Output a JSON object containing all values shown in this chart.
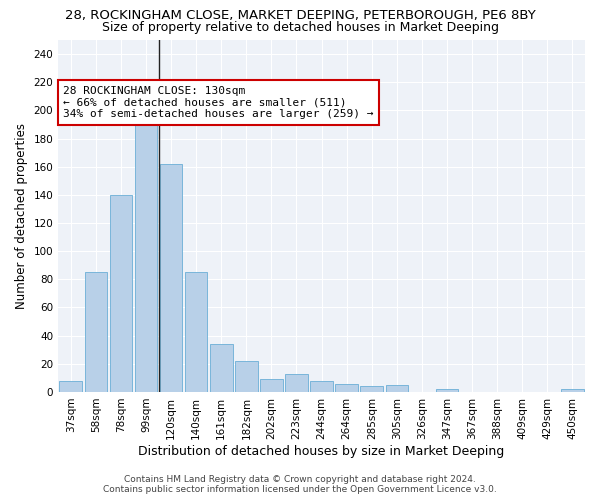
{
  "title": "28, ROCKINGHAM CLOSE, MARKET DEEPING, PETERBOROUGH, PE6 8BY",
  "subtitle": "Size of property relative to detached houses in Market Deeping",
  "xlabel": "Distribution of detached houses by size in Market Deeping",
  "ylabel": "Number of detached properties",
  "categories": [
    "37sqm",
    "58sqm",
    "78sqm",
    "99sqm",
    "120sqm",
    "140sqm",
    "161sqm",
    "182sqm",
    "202sqm",
    "223sqm",
    "244sqm",
    "264sqm",
    "285sqm",
    "305sqm",
    "326sqm",
    "347sqm",
    "367sqm",
    "388sqm",
    "409sqm",
    "429sqm",
    "450sqm"
  ],
  "values": [
    8,
    85,
    140,
    198,
    162,
    85,
    34,
    22,
    9,
    13,
    8,
    6,
    4,
    5,
    0,
    2,
    0,
    0,
    0,
    0,
    2
  ],
  "bar_color": "#b8d0e8",
  "bar_edge_color": "#6aaed6",
  "vline_x_index": 3.5,
  "annotation_box_text": "28 ROCKINGHAM CLOSE: 130sqm\n← 66% of detached houses are smaller (511)\n34% of semi-detached houses are larger (259) →",
  "annotation_box_color": "white",
  "annotation_box_edge_color": "#cc0000",
  "vline_color": "#222222",
  "background_color": "#eef2f8",
  "grid_color": "white",
  "ylim": [
    0,
    250
  ],
  "yticks": [
    0,
    20,
    40,
    60,
    80,
    100,
    120,
    140,
    160,
    180,
    200,
    220,
    240
  ],
  "footer_line1": "Contains HM Land Registry data © Crown copyright and database right 2024.",
  "footer_line2": "Contains public sector information licensed under the Open Government Licence v3.0.",
  "title_fontsize": 9.5,
  "subtitle_fontsize": 9,
  "xlabel_fontsize": 9,
  "ylabel_fontsize": 8.5,
  "tick_fontsize": 7.5,
  "annotation_fontsize": 8,
  "footer_fontsize": 6.5
}
